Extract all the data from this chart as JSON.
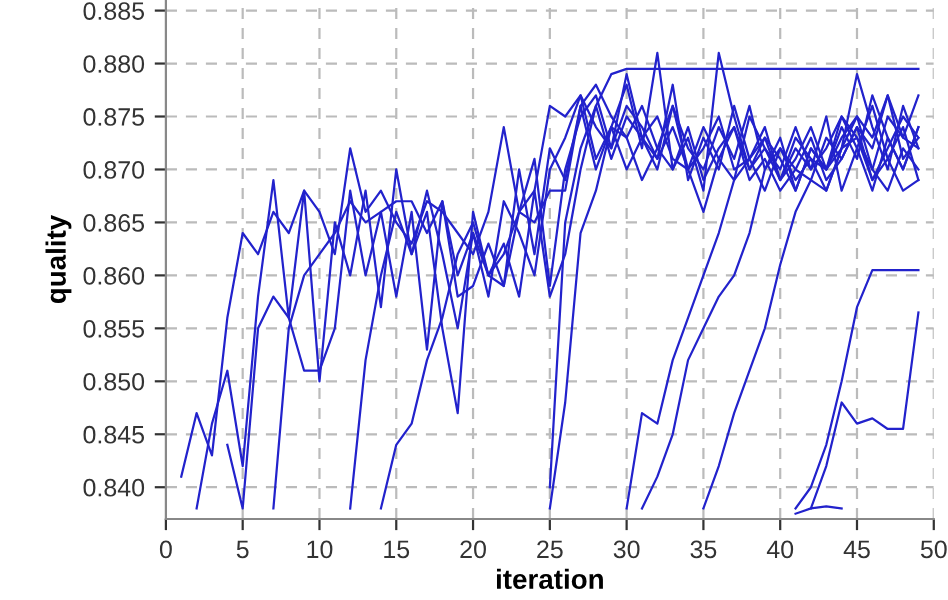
{
  "chart_data": {
    "type": "line",
    "xlabel": "iteration",
    "ylabel": "quality",
    "xlim": [
      0,
      50
    ],
    "ylim": [
      0.837,
      0.886
    ],
    "xticks": [
      0,
      5,
      10,
      15,
      20,
      25,
      30,
      35,
      40,
      45,
      50
    ],
    "yticks": [
      {
        "value": 0.84,
        "label": "0.840"
      },
      {
        "value": 0.845,
        "label": "0.845"
      },
      {
        "value": 0.85,
        "label": "0.850"
      },
      {
        "value": 0.855,
        "label": "0.855"
      },
      {
        "value": 0.86,
        "label": "0.860"
      },
      {
        "value": 0.865,
        "label": "0.865"
      },
      {
        "value": 0.87,
        "label": "0.870"
      },
      {
        "value": 0.875,
        "label": "0.875"
      },
      {
        "value": 0.88,
        "label": "0.880"
      },
      {
        "value": 0.885,
        "label": "0.885"
      }
    ],
    "grid": true,
    "line_style": "solid",
    "marker": "none",
    "series": [
      {
        "color": "#2222cc",
        "x": [
          1,
          2,
          3,
          4,
          5,
          6,
          7,
          8,
          9,
          10,
          11,
          12,
          13,
          14,
          15,
          16,
          17,
          18,
          19,
          20,
          21,
          22,
          23,
          24,
          25,
          26,
          27,
          28,
          29,
          30,
          31,
          32,
          33,
          34,
          35,
          36,
          37,
          38,
          39,
          40,
          41,
          42,
          43,
          44,
          45,
          46,
          47,
          48,
          49
        ],
        "values": [
          0.841,
          0.847,
          0.843,
          0.856,
          0.864,
          0.862,
          0.866,
          0.864,
          0.868,
          0.866,
          0.862,
          0.872,
          0.866,
          0.868,
          0.865,
          0.863,
          0.867,
          0.866,
          0.864,
          0.862,
          0.866,
          0.874,
          0.866,
          0.868,
          0.876,
          0.875,
          0.877,
          0.874,
          0.872,
          0.879,
          0.873,
          0.871,
          0.874,
          0.87,
          0.872,
          0.875,
          0.87,
          0.871,
          0.873,
          0.869,
          0.871,
          0.874,
          0.87,
          0.872,
          0.875,
          0.873,
          0.877,
          0.871,
          0.873
        ]
      },
      {
        "color": "#2222cc",
        "x": [
          2,
          3,
          4,
          5,
          6,
          7,
          8,
          9,
          10,
          11,
          12,
          13,
          14,
          15,
          16,
          17,
          18,
          19,
          20,
          21,
          22,
          23,
          24,
          25,
          26,
          27,
          28,
          29,
          30,
          31,
          32,
          33,
          34,
          35,
          36,
          37,
          38,
          39,
          40,
          41,
          42,
          43,
          44,
          45,
          46,
          47,
          48,
          49
        ],
        "values": [
          0.838,
          0.846,
          0.851,
          0.842,
          0.858,
          0.869,
          0.856,
          0.868,
          0.85,
          0.865,
          0.86,
          0.868,
          0.857,
          0.87,
          0.862,
          0.866,
          0.855,
          0.847,
          0.866,
          0.86,
          0.859,
          0.87,
          0.862,
          0.872,
          0.869,
          0.876,
          0.87,
          0.874,
          0.878,
          0.872,
          0.881,
          0.87,
          0.873,
          0.868,
          0.881,
          0.875,
          0.87,
          0.872,
          0.869,
          0.873,
          0.871,
          0.868,
          0.872,
          0.879,
          0.874,
          0.87,
          0.876,
          0.872
        ]
      },
      {
        "color": "#2222cc",
        "x": [
          4,
          5,
          6,
          7,
          8,
          9,
          10,
          11,
          12,
          13,
          14,
          15,
          16,
          17,
          18,
          19,
          20,
          21,
          22,
          23,
          24,
          25,
          26,
          27,
          28,
          29,
          30,
          31,
          32,
          33,
          34,
          35,
          36,
          37,
          38,
          39,
          40,
          41,
          42,
          43,
          44,
          45,
          46,
          47,
          48,
          49
        ],
        "values": [
          0.844,
          0.838,
          0.855,
          0.858,
          0.856,
          0.851,
          0.851,
          0.855,
          0.868,
          0.86,
          0.866,
          0.858,
          0.866,
          0.853,
          0.867,
          0.858,
          0.859,
          0.863,
          0.859,
          0.866,
          0.871,
          0.859,
          0.87,
          0.875,
          0.877,
          0.872,
          0.876,
          0.874,
          0.871,
          0.878,
          0.869,
          0.873,
          0.87,
          0.876,
          0.871,
          0.874,
          0.869,
          0.872,
          0.87,
          0.875,
          0.868,
          0.872,
          0.876,
          0.871,
          0.874,
          0.869
        ]
      },
      {
        "color": "#2222cc",
        "x": [
          7,
          8,
          9,
          10,
          11,
          12,
          13,
          14,
          15,
          16,
          17,
          18,
          19,
          20,
          21,
          22,
          23,
          24,
          25,
          26,
          27,
          28,
          29,
          30,
          31,
          32,
          33,
          34,
          35,
          36,
          37,
          38,
          39,
          40,
          41,
          42,
          43,
          44,
          45,
          46,
          47,
          48,
          49
        ],
        "values": [
          0.838,
          0.855,
          0.86,
          0.862,
          0.864,
          0.867,
          0.865,
          0.866,
          0.867,
          0.867,
          0.864,
          0.867,
          0.86,
          0.864,
          0.86,
          0.862,
          0.866,
          0.865,
          0.868,
          0.868,
          0.876,
          0.878,
          0.875,
          0.873,
          0.876,
          0.872,
          0.87,
          0.874,
          0.869,
          0.872,
          0.874,
          0.87,
          0.873,
          0.871,
          0.868,
          0.872,
          0.87,
          0.874,
          0.871,
          0.877,
          0.873,
          0.87,
          0.874
        ]
      },
      {
        "color": "#2222cc",
        "x": [
          12,
          13,
          14,
          15,
          16,
          17,
          18,
          19,
          20,
          21,
          22,
          23,
          24,
          25,
          26,
          27,
          28,
          29,
          30,
          31,
          32,
          33,
          34,
          35,
          36,
          37,
          38,
          39,
          40,
          41,
          42,
          43,
          44,
          45,
          46,
          47,
          48,
          49
        ],
        "values": [
          0.838,
          0.852,
          0.86,
          0.866,
          0.862,
          0.868,
          0.862,
          0.855,
          0.864,
          0.858,
          0.867,
          0.864,
          0.86,
          0.87,
          0.873,
          0.877,
          0.871,
          0.874,
          0.87,
          0.873,
          0.875,
          0.871,
          0.87,
          0.874,
          0.871,
          0.869,
          0.875,
          0.872,
          0.87,
          0.874,
          0.87,
          0.872,
          0.875,
          0.873,
          0.87,
          0.875,
          0.873,
          0.877
        ]
      },
      {
        "color": "#2222cc",
        "x": [
          14,
          15,
          16,
          17,
          18,
          19,
          20,
          21,
          22,
          23,
          24,
          25,
          26,
          27,
          28,
          29,
          30,
          31,
          32,
          33,
          34,
          35,
          36,
          37,
          38,
          39,
          40,
          41,
          42,
          43,
          44,
          45,
          46,
          47,
          48,
          49
        ],
        "values": [
          0.838,
          0.844,
          0.846,
          0.852,
          0.856,
          0.862,
          0.865,
          0.86,
          0.863,
          0.858,
          0.868,
          0.858,
          0.862,
          0.87,
          0.876,
          0.871,
          0.875,
          0.873,
          0.87,
          0.876,
          0.872,
          0.87,
          0.874,
          0.871,
          0.876,
          0.87,
          0.872,
          0.87,
          0.869,
          0.873,
          0.871,
          0.874,
          0.872,
          0.877,
          0.873,
          0.872
        ]
      },
      {
        "color": "#2222cc",
        "x": [
          25,
          26,
          27,
          28,
          29,
          30,
          31,
          32,
          33,
          34,
          35,
          36,
          37,
          38,
          39,
          40,
          41,
          42,
          43,
          44,
          45,
          46,
          47,
          48,
          49
        ],
        "values": [
          0.838,
          0.848,
          0.864,
          0.868,
          0.874,
          0.873,
          0.869,
          0.872,
          0.876,
          0.87,
          0.866,
          0.871,
          0.874,
          0.869,
          0.871,
          0.868,
          0.87,
          0.873,
          0.869,
          0.871,
          0.874,
          0.869,
          0.872,
          0.875,
          0.873
        ]
      },
      {
        "color": "#2222cc",
        "x": [
          25,
          26,
          27,
          28,
          29,
          30,
          31,
          32,
          33,
          34,
          35,
          36,
          37,
          38,
          39,
          40,
          41,
          42,
          43,
          44,
          45,
          46,
          47,
          48,
          49
        ],
        "values": [
          0.84,
          0.865,
          0.872,
          0.876,
          0.879,
          0.8795,
          0.8795,
          0.8795,
          0.8795,
          0.8795,
          0.8795,
          0.8795,
          0.8795,
          0.8795,
          0.8795,
          0.8795,
          0.8795,
          0.8795,
          0.8795,
          0.8795,
          0.8795,
          0.8795,
          0.8795,
          0.8795,
          0.8795
        ]
      },
      {
        "color": "#2222cc",
        "x": [
          30,
          31,
          32,
          33,
          34,
          35,
          36,
          37,
          38,
          39,
          40,
          41,
          42,
          43,
          44,
          45,
          46,
          47,
          48,
          49
        ],
        "values": [
          0.838,
          0.847,
          0.846,
          0.852,
          0.856,
          0.86,
          0.864,
          0.869,
          0.871,
          0.868,
          0.872,
          0.869,
          0.871,
          0.87,
          0.875,
          0.872,
          0.868,
          0.873,
          0.87,
          0.874
        ]
      },
      {
        "color": "#2222cc",
        "x": [
          31,
          32,
          33,
          34,
          35,
          36,
          37,
          38,
          39,
          40,
          41,
          42,
          43,
          44,
          45,
          46,
          47,
          48,
          49
        ],
        "values": [
          0.838,
          0.841,
          0.845,
          0.852,
          0.855,
          0.858,
          0.86,
          0.864,
          0.87,
          0.873,
          0.868,
          0.872,
          0.87,
          0.873,
          0.875,
          0.87,
          0.868,
          0.872,
          0.87
        ]
      },
      {
        "color": "#2222cc",
        "x": [
          35,
          36,
          37,
          38,
          39,
          40,
          41,
          42,
          43,
          44,
          45,
          46,
          47,
          48,
          49
        ],
        "values": [
          0.838,
          0.842,
          0.847,
          0.851,
          0.855,
          0.861,
          0.866,
          0.869,
          0.868,
          0.872,
          0.873,
          0.869,
          0.871,
          0.868,
          0.869
        ]
      },
      {
        "color": "#2222cc",
        "x": [
          41,
          42,
          43,
          44,
          45,
          46,
          47,
          48,
          49
        ],
        "values": [
          0.838,
          0.84,
          0.844,
          0.85,
          0.857,
          0.8605,
          0.8605,
          0.8605,
          0.8605
        ]
      },
      {
        "color": "#2222cc",
        "x": [
          42,
          43,
          44,
          45,
          46,
          47,
          48,
          49
        ],
        "values": [
          0.838,
          0.842,
          0.848,
          0.846,
          0.8465,
          0.8455,
          0.8455,
          0.8565
        ]
      },
      {
        "color": "#2222cc",
        "x": [
          41,
          42,
          43,
          44
        ],
        "values": [
          0.8375,
          0.838,
          0.8382,
          0.838
        ]
      }
    ]
  }
}
